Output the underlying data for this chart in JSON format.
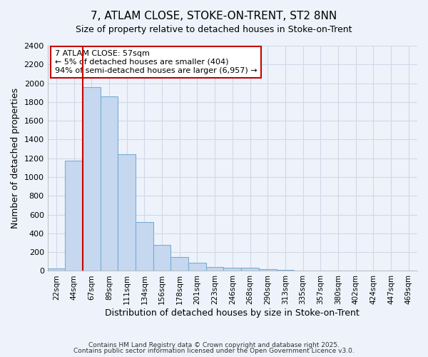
{
  "title1": "7, ATLAM CLOSE, STOKE-ON-TRENT, ST2 8NN",
  "title2": "Size of property relative to detached houses in Stoke-on-Trent",
  "xlabel": "Distribution of detached houses by size in Stoke-on-Trent",
  "ylabel": "Number of detached properties",
  "categories": [
    "22sqm",
    "44sqm",
    "67sqm",
    "89sqm",
    "111sqm",
    "134sqm",
    "156sqm",
    "178sqm",
    "201sqm",
    "223sqm",
    "246sqm",
    "268sqm",
    "290sqm",
    "313sqm",
    "335sqm",
    "357sqm",
    "380sqm",
    "402sqm",
    "424sqm",
    "447sqm",
    "469sqm"
  ],
  "values": [
    25,
    1175,
    1960,
    1860,
    1240,
    520,
    275,
    150,
    90,
    45,
    35,
    35,
    20,
    8,
    5,
    3,
    2,
    2,
    1,
    1,
    2
  ],
  "bar_color": "#c5d8f0",
  "bar_edge_color": "#7aadd4",
  "vline_x": 1.5,
  "vline_color": "#cc0000",
  "annotation_title": "7 ATLAM CLOSE: 57sqm",
  "annotation_line1": "← 5% of detached houses are smaller (404)",
  "annotation_line2": "94% of semi-detached houses are larger (6,957) →",
  "annotation_box_color": "#ffffff",
  "annotation_box_edge": "#cc0000",
  "ylim": [
    0,
    2400
  ],
  "yticks": [
    0,
    200,
    400,
    600,
    800,
    1000,
    1200,
    1400,
    1600,
    1800,
    2000,
    2200,
    2400
  ],
  "footer1": "Contains HM Land Registry data © Crown copyright and database right 2025.",
  "footer2": "Contains public sector information licensed under the Open Government Licence v3.0.",
  "bg_color": "#eef3fb",
  "grid_color": "#d0d8e8"
}
